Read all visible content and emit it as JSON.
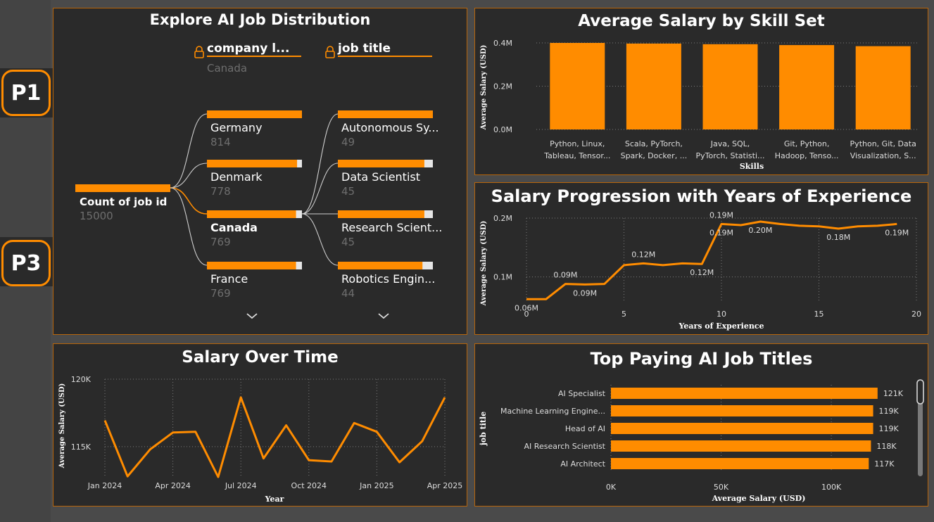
{
  "nav": {
    "p1_label": "P1",
    "p3_label": "P3"
  },
  "colors": {
    "accent": "#ff8c00",
    "panel_bg": "#2a2a2a",
    "page_bg": "#4a4a4a",
    "muted": "#6e6e6e",
    "border": "#b8650a"
  },
  "decomp": {
    "title": "Explore AI Job Distribution",
    "root_label": "Count of job id",
    "root_value": "15000",
    "level1_header": "company l...",
    "level1_selected": "Canada",
    "level2_header": "job title",
    "lock_icon": "lock-icon",
    "expand_icon": "chevron-down-icon",
    "level1_items": [
      {
        "label": "Germany",
        "value": "814",
        "fill": 1.0,
        "bold": false
      },
      {
        "label": "Denmark",
        "value": "778",
        "fill": 0.956,
        "bold": false
      },
      {
        "label": "Canada",
        "value": "769",
        "fill": 0.945,
        "bold": true
      },
      {
        "label": "France",
        "value": "769",
        "fill": 0.945,
        "bold": false
      }
    ],
    "level2_items": [
      {
        "label": "Autonomous Sy...",
        "value": "49",
        "fill": 1.0
      },
      {
        "label": "Data Scientist",
        "value": "45",
        "fill": 0.918
      },
      {
        "label": "Research Scient...",
        "value": "45",
        "fill": 0.918
      },
      {
        "label": "Robotics Engin...",
        "value": "44",
        "fill": 0.898
      }
    ]
  },
  "chart_data": [
    {
      "type": "bar",
      "title": "Average Salary by Skill Set",
      "xlabel": "Skills",
      "ylabel": "Average Salary (USD)",
      "ylim": [
        0,
        400000
      ],
      "yticks": [
        "0.0M",
        "0.2M",
        "0.4M"
      ],
      "grid": true,
      "categories": [
        [
          "Python, Linux,",
          "Tableau, Tensor..."
        ],
        [
          "Scala, PyTorch,",
          "Spark, Docker, ..."
        ],
        [
          "Java, SQL,",
          "PyTorch, Statisti..."
        ],
        [
          "Git, Python,",
          "Hadoop, Tenso..."
        ],
        [
          "Python, Git, Data",
          "Visualization, S..."
        ]
      ],
      "values": [
        400000,
        397000,
        394000,
        390000,
        385000
      ]
    },
    {
      "type": "line",
      "title": "Salary Progression with Years of Experience",
      "xlabel": "Years of Experience",
      "ylabel": "Average Salary (USD)",
      "xlim": [
        0,
        20
      ],
      "ylim": [
        0.06,
        0.2
      ],
      "xticks": [
        "0",
        "5",
        "10",
        "15",
        "20"
      ],
      "yticks": [
        "0.1M",
        "0.2M"
      ],
      "grid": true,
      "x": [
        0,
        1,
        2,
        3,
        4,
        5,
        6,
        7,
        8,
        9,
        10,
        11,
        12,
        13,
        14,
        15,
        16,
        17,
        18,
        19
      ],
      "y": [
        0.062,
        0.062,
        0.088,
        0.087,
        0.088,
        0.12,
        0.123,
        0.12,
        0.123,
        0.122,
        0.19,
        0.188,
        0.194,
        0.19,
        0.187,
        0.186,
        0.182,
        0.186,
        0.187,
        0.19
      ],
      "data_labels": [
        {
          "x": 0,
          "y": 0.062,
          "text": "0.06M",
          "pos": "below"
        },
        {
          "x": 2,
          "y": 0.088,
          "text": "0.09M",
          "pos": "above"
        },
        {
          "x": 3,
          "y": 0.087,
          "text": "0.09M",
          "pos": "below"
        },
        {
          "x": 6,
          "y": 0.123,
          "text": "0.12M",
          "pos": "above"
        },
        {
          "x": 9,
          "y": 0.122,
          "text": "0.12M",
          "pos": "below"
        },
        {
          "x": 10,
          "y": 0.19,
          "text": "0.19M",
          "pos": "above"
        },
        {
          "x": 10,
          "y": 0.19,
          "text": "0.19M",
          "pos": "below"
        },
        {
          "x": 12,
          "y": 0.194,
          "text": "0.20M",
          "pos": "below"
        },
        {
          "x": 16,
          "y": 0.182,
          "text": "0.18M",
          "pos": "below"
        },
        {
          "x": 19,
          "y": 0.19,
          "text": "0.19M",
          "pos": "below"
        }
      ]
    },
    {
      "type": "line",
      "title": "Salary Over Time",
      "xlabel": "Year",
      "ylabel": "Average Salary (USD)",
      "ylim": [
        112700,
        120000
      ],
      "yticks": [
        {
          "value": 115000,
          "label": "115K"
        },
        {
          "value": 120000,
          "label": "120K"
        }
      ],
      "xticks": [
        {
          "index": 0,
          "label": "Jan 2024"
        },
        {
          "index": 3,
          "label": "Apr 2024"
        },
        {
          "index": 6,
          "label": "Jul 2024"
        },
        {
          "index": 9,
          "label": "Oct 2024"
        },
        {
          "index": 12,
          "label": "Jan 2025"
        },
        {
          "index": 15,
          "label": "Apr 2025"
        }
      ],
      "grid": true,
      "x": [
        "2024-01",
        "2024-02",
        "2024-03",
        "2024-04",
        "2024-05",
        "2024-06",
        "2024-07",
        "2024-08",
        "2024-09",
        "2024-10",
        "2024-11",
        "2024-12",
        "2025-01",
        "2025-02",
        "2025-03",
        "2025-04"
      ],
      "y": [
        116950,
        112800,
        114800,
        116050,
        116100,
        112750,
        118650,
        114130,
        116580,
        114000,
        113900,
        116750,
        116100,
        113840,
        115400,
        118650
      ]
    },
    {
      "type": "bar",
      "orientation": "horizontal",
      "title": "Top Paying AI Job Titles",
      "xlabel": "Average Salary (USD)",
      "ylabel": "job title",
      "xlim": [
        0,
        130000
      ],
      "xticks": [
        {
          "value": 0,
          "label": "0K"
        },
        {
          "value": 50000,
          "label": "50K"
        },
        {
          "value": 100000,
          "label": "100K"
        }
      ],
      "grid": true,
      "categories": [
        "AI Specialist",
        "Machine Learning Engine...",
        "Head of AI",
        "AI Research Scientist",
        "AI Architect"
      ],
      "values": [
        121000,
        119000,
        119000,
        118000,
        117000
      ],
      "value_labels": [
        "121K",
        "119K",
        "119K",
        "118K",
        "117K"
      ]
    }
  ]
}
